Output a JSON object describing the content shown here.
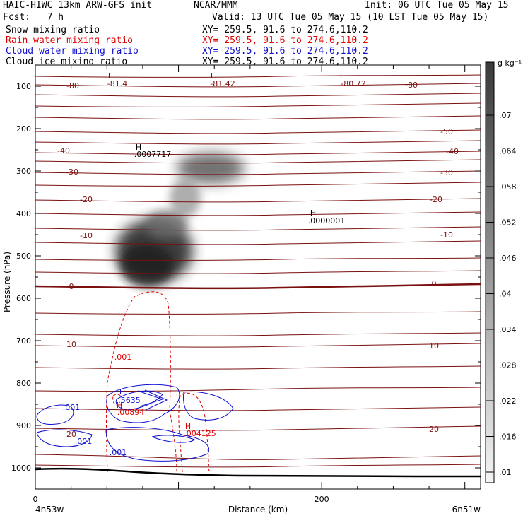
{
  "header": {
    "line1_left": "HAIC-HIWC 13km ARW-GFS init",
    "line1_mid": "NCAR/MMM",
    "line1_right": "Init: 06 UTC Tue 05 May 15",
    "line2_left": "Fcst:   7 h",
    "line2_right": "Valid: 13 UTC Tue 05 May 15 (10 LST Tue 05 May 15)",
    "fields": [
      {
        "name": "Snow mixing ratio",
        "xy": "XY= 259.5, 91.6 to 274.6,110.2",
        "color": "#000000"
      },
      {
        "name": "Rain water mixing ratio",
        "xy": "XY= 259.5, 91.6 to 274.6,110.2",
        "color": "#e00000"
      },
      {
        "name": "Cloud water mixing ratio",
        "xy": "XY= 259.5, 91.6 to 274.6,110.2",
        "color": "#1010d0"
      },
      {
        "name": "Cloud ice mixing ratio",
        "xy": "XY= 259.5, 91.6 to 274.6,110.2",
        "color": "#000000"
      }
    ]
  },
  "chart_data": {
    "type": "cross-section contour",
    "xlabel": "Distance (km)",
    "ylabel": "Pressure (hPa)",
    "x_ticks": [
      "0",
      "200"
    ],
    "x_range_km": [
      0,
      311
    ],
    "y_ticks": [
      100,
      200,
      300,
      400,
      500,
      600,
      700,
      800,
      900,
      1000
    ],
    "y_range_hPa": [
      50,
      1050
    ],
    "x_endpoints": {
      "left": "4n53w",
      "right": "6n51w"
    },
    "colorbar": {
      "unit": "g kg⁻¹",
      "ticks": [
        ".01",
        ".016",
        ".022",
        ".028",
        ".034",
        ".04",
        ".046",
        ".052",
        ".058",
        ".064",
        ".07"
      ]
    },
    "temperature_contours": [
      {
        "value": -80,
        "label": "-80"
      },
      {
        "value": -50,
        "label": "-50"
      },
      {
        "value": -40,
        "label": "-40"
      },
      {
        "value": -30,
        "label": "-30"
      },
      {
        "value": -20,
        "label": "-20"
      },
      {
        "value": -10,
        "label": "-10"
      },
      {
        "value": 0,
        "label": "0"
      },
      {
        "value": 10,
        "label": "10"
      },
      {
        "value": 20,
        "label": "20"
      }
    ],
    "extrema": [
      {
        "kind": "L",
        "value": "-81.4"
      },
      {
        "kind": "L",
        "value": "-81.42"
      },
      {
        "kind": "L",
        "value": "-80.72"
      },
      {
        "kind": "H",
        "value": ".0007717"
      },
      {
        "kind": "H",
        "value": ".0000001"
      },
      {
        "kind": "H",
        "value": ".5635"
      },
      {
        "kind": "H",
        "value": ".00894"
      },
      {
        "kind": "H",
        "value": ".004125"
      }
    ],
    "rain_contour_label": ".001",
    "cloud_water_labels": [
      ".001",
      ".001",
      ".001"
    ]
  }
}
